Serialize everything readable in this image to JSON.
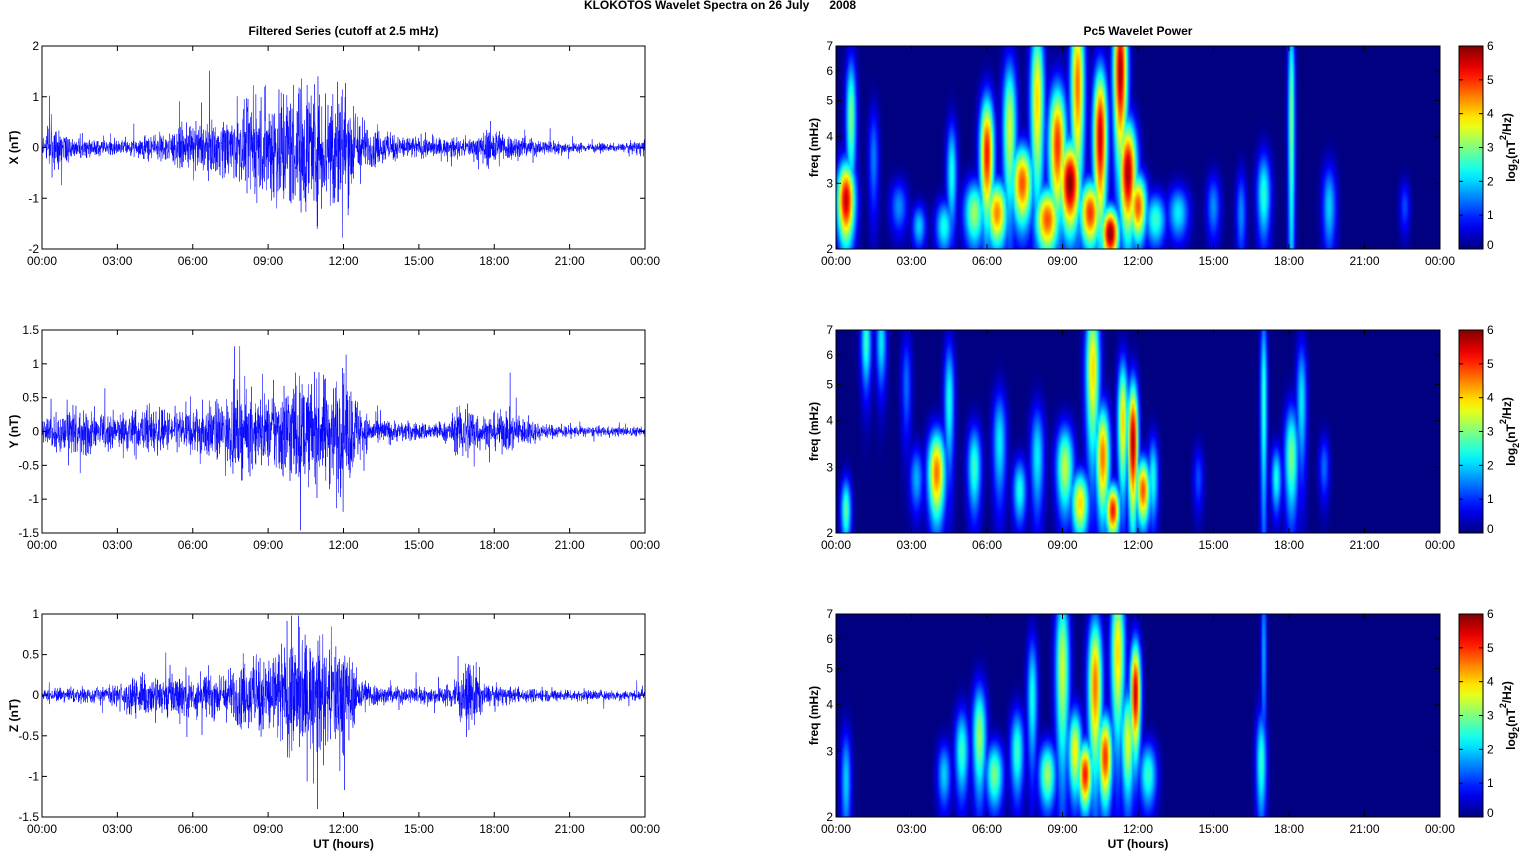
{
  "figure": {
    "title": "KLOKOTOS Wavelet Spectra on 26 July      2008"
  },
  "chart_data": [
    {
      "type": "line",
      "panel": "X",
      "title": "Filtered Series (cutoff at 2.5 mHz)",
      "xlabel": "",
      "ylabel": "X (nT)",
      "xlim": [
        0,
        24
      ],
      "ylim": [
        -2,
        2
      ],
      "xticks": [
        "00:00",
        "03:00",
        "06:00",
        "09:00",
        "12:00",
        "15:00",
        "18:00",
        "21:00",
        "00:00"
      ],
      "yticks": [
        -2,
        -1,
        0,
        1,
        2
      ],
      "color": "#0000ff",
      "envelope": [
        {
          "t": 0,
          "a": 0.15
        },
        {
          "t": 0.5,
          "a": 0.55
        },
        {
          "t": 1,
          "a": 0.3
        },
        {
          "t": 2,
          "a": 0.18
        },
        {
          "t": 3,
          "a": 0.18
        },
        {
          "t": 4,
          "a": 0.22
        },
        {
          "t": 5,
          "a": 0.35
        },
        {
          "t": 6,
          "a": 0.5
        },
        {
          "t": 7,
          "a": 0.6
        },
        {
          "t": 8,
          "a": 0.8
        },
        {
          "t": 9,
          "a": 1.2
        },
        {
          "t": 9.5,
          "a": 1.5
        },
        {
          "t": 10,
          "a": 1.4
        },
        {
          "t": 10.6,
          "a": 1.6
        },
        {
          "t": 11.2,
          "a": 1.4
        },
        {
          "t": 11.8,
          "a": 1.7
        },
        {
          "t": 12.3,
          "a": 1.1
        },
        {
          "t": 13,
          "a": 0.45
        },
        {
          "t": 14,
          "a": 0.3
        },
        {
          "t": 15,
          "a": 0.25
        },
        {
          "t": 16,
          "a": 0.2
        },
        {
          "t": 17,
          "a": 0.2
        },
        {
          "t": 18,
          "a": 0.5
        },
        {
          "t": 18.5,
          "a": 0.3
        },
        {
          "t": 19.5,
          "a": 0.2
        },
        {
          "t": 21,
          "a": 0.12
        },
        {
          "t": 23,
          "a": 0.08
        },
        {
          "t": 24,
          "a": 0.18
        }
      ]
    },
    {
      "type": "line",
      "panel": "Y",
      "title": "",
      "xlabel": "",
      "ylabel": "Y (nT)",
      "xlim": [
        0,
        24
      ],
      "ylim": [
        -1.5,
        1.5
      ],
      "xticks": [
        "00:00",
        "03:00",
        "06:00",
        "09:00",
        "12:00",
        "15:00",
        "18:00",
        "21:00",
        "00:00"
      ],
      "yticks": [
        -1.5,
        -1,
        -0.5,
        0,
        0.5,
        1,
        1.5
      ],
      "color": "#0000ff",
      "envelope": [
        {
          "t": 0,
          "a": 0.2
        },
        {
          "t": 1,
          "a": 0.4
        },
        {
          "t": 2,
          "a": 0.35
        },
        {
          "t": 3,
          "a": 0.3
        },
        {
          "t": 4,
          "a": 0.4
        },
        {
          "t": 5,
          "a": 0.35
        },
        {
          "t": 6,
          "a": 0.4
        },
        {
          "t": 7,
          "a": 0.5
        },
        {
          "t": 8,
          "a": 0.7
        },
        {
          "t": 9,
          "a": 0.6
        },
        {
          "t": 10,
          "a": 1.0
        },
        {
          "t": 10.5,
          "a": 0.8
        },
        {
          "t": 11,
          "a": 0.85
        },
        {
          "t": 12,
          "a": 1.0
        },
        {
          "t": 13,
          "a": 0.25
        },
        {
          "t": 14,
          "a": 0.18
        },
        {
          "t": 15,
          "a": 0.15
        },
        {
          "t": 16,
          "a": 0.15
        },
        {
          "t": 17,
          "a": 0.55
        },
        {
          "t": 17.5,
          "a": 0.25
        },
        {
          "t": 18.5,
          "a": 0.35
        },
        {
          "t": 20,
          "a": 0.12
        },
        {
          "t": 22,
          "a": 0.08
        },
        {
          "t": 24,
          "a": 0.08
        }
      ]
    },
    {
      "type": "line",
      "panel": "Z",
      "title": "",
      "xlabel": "UT (hours)",
      "ylabel": "Z (nT)",
      "xlim": [
        0,
        24
      ],
      "ylim": [
        -1.5,
        1
      ],
      "xticks": [
        "00:00",
        "03:00",
        "06:00",
        "09:00",
        "12:00",
        "15:00",
        "18:00",
        "21:00",
        "00:00"
      ],
      "yticks": [
        -1.5,
        -1,
        -0.5,
        0,
        0.5,
        1
      ],
      "color": "#0000ff",
      "envelope": [
        {
          "t": 0,
          "a": 0.08
        },
        {
          "t": 1,
          "a": 0.12
        },
        {
          "t": 2,
          "a": 0.1
        },
        {
          "t": 3,
          "a": 0.15
        },
        {
          "t": 4,
          "a": 0.3
        },
        {
          "t": 5,
          "a": 0.35
        },
        {
          "t": 6,
          "a": 0.3
        },
        {
          "t": 7,
          "a": 0.3
        },
        {
          "t": 8,
          "a": 0.45
        },
        {
          "t": 9,
          "a": 0.6
        },
        {
          "t": 10,
          "a": 0.9
        },
        {
          "t": 10.5,
          "a": 0.8
        },
        {
          "t": 11.5,
          "a": 0.7
        },
        {
          "t": 12,
          "a": 0.9
        },
        {
          "t": 12.5,
          "a": 0.3
        },
        {
          "t": 13.5,
          "a": 0.12
        },
        {
          "t": 15,
          "a": 0.12
        },
        {
          "t": 16,
          "a": 0.12
        },
        {
          "t": 17.2,
          "a": 0.5
        },
        {
          "t": 17.6,
          "a": 0.15
        },
        {
          "t": 19,
          "a": 0.1
        },
        {
          "t": 21,
          "a": 0.08
        },
        {
          "t": 24,
          "a": 0.07
        }
      ]
    },
    {
      "type": "heatmap",
      "panel": "X",
      "title": "Pc5 Wavelet Power",
      "xlabel": "",
      "ylabel": "freq (mHz)",
      "xlim": [
        0,
        24
      ],
      "ylim": [
        2,
        7
      ],
      "yscale": "log",
      "xticks": [
        "00:00",
        "03:00",
        "06:00",
        "09:00",
        "12:00",
        "15:00",
        "18:00",
        "21:00",
        "00:00"
      ],
      "yticks": [
        2,
        3,
        4,
        5,
        6,
        7
      ],
      "colorbar": {
        "label_base": "log",
        "label_sub": "2",
        "label_rest": "(nT",
        "label_sup": "2",
        "label_end": "/Hz)",
        "range": [
          0,
          6
        ],
        "ticks": [
          0,
          1,
          2,
          3,
          4,
          5,
          6
        ],
        "colormap": "jet"
      },
      "blobs": [
        {
          "t": 0.4,
          "f": 2.7,
          "p": 5.6,
          "wt": 0.25,
          "wf": 0.18
        },
        {
          "t": 0.6,
          "f": 4.5,
          "p": 3.0,
          "wt": 0.15,
          "wf": 0.3
        },
        {
          "t": 1.5,
          "f": 3.5,
          "p": 1.5,
          "wt": 0.15,
          "wf": 0.25
        },
        {
          "t": 2.5,
          "f": 2.6,
          "p": 1.6,
          "wt": 0.25,
          "wf": 0.12
        },
        {
          "t": 3.3,
          "f": 2.3,
          "p": 2.0,
          "wt": 0.2,
          "wf": 0.1
        },
        {
          "t": 4.3,
          "f": 2.3,
          "p": 2.4,
          "wt": 0.25,
          "wf": 0.12
        },
        {
          "t": 4.6,
          "f": 3.2,
          "p": 2.4,
          "wt": 0.15,
          "wf": 0.25
        },
        {
          "t": 5.5,
          "f": 2.5,
          "p": 3.2,
          "wt": 0.3,
          "wf": 0.15
        },
        {
          "t": 6.0,
          "f": 3.6,
          "p": 5.2,
          "wt": 0.2,
          "wf": 0.28
        },
        {
          "t": 6.4,
          "f": 2.5,
          "p": 4.5,
          "wt": 0.3,
          "wf": 0.15
        },
        {
          "t": 6.9,
          "f": 4.2,
          "p": 3.5,
          "wt": 0.2,
          "wf": 0.35
        },
        {
          "t": 7.4,
          "f": 3.0,
          "p": 4.8,
          "wt": 0.3,
          "wf": 0.18
        },
        {
          "t": 8.0,
          "f": 5.0,
          "p": 4.0,
          "wt": 0.2,
          "wf": 0.4
        },
        {
          "t": 8.4,
          "f": 2.4,
          "p": 4.8,
          "wt": 0.35,
          "wf": 0.15
        },
        {
          "t": 8.8,
          "f": 3.8,
          "p": 5.0,
          "wt": 0.25,
          "wf": 0.3
        },
        {
          "t": 9.3,
          "f": 3.0,
          "p": 6.0,
          "wt": 0.3,
          "wf": 0.2
        },
        {
          "t": 9.6,
          "f": 5.5,
          "p": 4.6,
          "wt": 0.2,
          "wf": 0.4
        },
        {
          "t": 10.1,
          "f": 2.5,
          "p": 5.0,
          "wt": 0.3,
          "wf": 0.15
        },
        {
          "t": 10.5,
          "f": 4.0,
          "p": 5.6,
          "wt": 0.2,
          "wf": 0.35
        },
        {
          "t": 10.9,
          "f": 2.2,
          "p": 6.0,
          "wt": 0.25,
          "wf": 0.12
        },
        {
          "t": 11.3,
          "f": 6.0,
          "p": 5.8,
          "wt": 0.2,
          "wf": 0.35
        },
        {
          "t": 11.6,
          "f": 3.2,
          "p": 5.8,
          "wt": 0.25,
          "wf": 0.25
        },
        {
          "t": 12.0,
          "f": 2.6,
          "p": 4.8,
          "wt": 0.25,
          "wf": 0.15
        },
        {
          "t": 12.7,
          "f": 2.4,
          "p": 2.6,
          "wt": 0.3,
          "wf": 0.12
        },
        {
          "t": 13.6,
          "f": 2.5,
          "p": 2.2,
          "wt": 0.3,
          "wf": 0.12
        },
        {
          "t": 15.0,
          "f": 2.6,
          "p": 1.6,
          "wt": 0.2,
          "wf": 0.15
        },
        {
          "t": 16.1,
          "f": 2.5,
          "p": 1.6,
          "wt": 0.15,
          "wf": 0.2
        },
        {
          "t": 17.0,
          "f": 2.8,
          "p": 2.5,
          "wt": 0.2,
          "wf": 0.2
        },
        {
          "t": 18.1,
          "f": 4.5,
          "p": 3.0,
          "wt": 0.1,
          "wf": 0.6
        },
        {
          "t": 19.6,
          "f": 2.6,
          "p": 2.0,
          "wt": 0.2,
          "wf": 0.2
        },
        {
          "t": 22.6,
          "f": 2.6,
          "p": 1.2,
          "wt": 0.15,
          "wf": 0.12
        }
      ]
    },
    {
      "type": "heatmap",
      "panel": "Y",
      "title": "",
      "xlabel": "",
      "ylabel": "freq (mHz)",
      "xlim": [
        0,
        24
      ],
      "ylim": [
        2,
        7
      ],
      "yscale": "log",
      "xticks": [
        "00:00",
        "03:00",
        "06:00",
        "09:00",
        "12:00",
        "15:00",
        "18:00",
        "21:00",
        "00:00"
      ],
      "yticks": [
        2,
        3,
        4,
        5,
        6,
        7
      ],
      "colorbar": {
        "label_base": "log",
        "label_sub": "2",
        "label_rest": "(nT",
        "label_sup": "2",
        "label_end": "/Hz)",
        "range": [
          0,
          6
        ],
        "ticks": [
          0,
          1,
          2,
          3,
          4,
          5,
          6
        ],
        "colormap": "jet"
      },
      "blobs": [
        {
          "t": 0.4,
          "f": 2.3,
          "p": 2.8,
          "wt": 0.15,
          "wf": 0.15
        },
        {
          "t": 1.2,
          "f": 6.5,
          "p": 2.6,
          "wt": 0.15,
          "wf": 0.2
        },
        {
          "t": 1.8,
          "f": 6.5,
          "p": 2.2,
          "wt": 0.15,
          "wf": 0.2
        },
        {
          "t": 2.8,
          "f": 5.0,
          "p": 1.4,
          "wt": 0.15,
          "wf": 0.25
        },
        {
          "t": 3.2,
          "f": 2.8,
          "p": 1.8,
          "wt": 0.2,
          "wf": 0.15
        },
        {
          "t": 4.0,
          "f": 2.9,
          "p": 4.6,
          "wt": 0.25,
          "wf": 0.2
        },
        {
          "t": 4.5,
          "f": 4.5,
          "p": 2.4,
          "wt": 0.15,
          "wf": 0.3
        },
        {
          "t": 5.5,
          "f": 3.0,
          "p": 2.6,
          "wt": 0.2,
          "wf": 0.2
        },
        {
          "t": 6.5,
          "f": 3.5,
          "p": 2.2,
          "wt": 0.2,
          "wf": 0.25
        },
        {
          "t": 7.3,
          "f": 2.6,
          "p": 2.4,
          "wt": 0.2,
          "wf": 0.15
        },
        {
          "t": 8.0,
          "f": 3.2,
          "p": 2.2,
          "wt": 0.2,
          "wf": 0.25
        },
        {
          "t": 9.1,
          "f": 3.0,
          "p": 3.4,
          "wt": 0.25,
          "wf": 0.2
        },
        {
          "t": 9.7,
          "f": 2.4,
          "p": 4.0,
          "wt": 0.25,
          "wf": 0.15
        },
        {
          "t": 10.2,
          "f": 5.5,
          "p": 4.0,
          "wt": 0.2,
          "wf": 0.35
        },
        {
          "t": 10.6,
          "f": 3.2,
          "p": 4.6,
          "wt": 0.2,
          "wf": 0.25
        },
        {
          "t": 11.0,
          "f": 2.3,
          "p": 5.2,
          "wt": 0.2,
          "wf": 0.12
        },
        {
          "t": 11.4,
          "f": 4.0,
          "p": 4.0,
          "wt": 0.15,
          "wf": 0.3
        },
        {
          "t": 11.8,
          "f": 3.5,
          "p": 5.8,
          "wt": 0.15,
          "wf": 0.3
        },
        {
          "t": 12.2,
          "f": 2.6,
          "p": 4.8,
          "wt": 0.2,
          "wf": 0.15
        },
        {
          "t": 12.6,
          "f": 2.8,
          "p": 2.4,
          "wt": 0.15,
          "wf": 0.2
        },
        {
          "t": 14.4,
          "f": 2.8,
          "p": 1.2,
          "wt": 0.15,
          "wf": 0.15
        },
        {
          "t": 17.0,
          "f": 4.5,
          "p": 2.6,
          "wt": 0.1,
          "wf": 0.5
        },
        {
          "t": 17.5,
          "f": 2.8,
          "p": 2.4,
          "wt": 0.15,
          "wf": 0.15
        },
        {
          "t": 18.1,
          "f": 3.2,
          "p": 3.0,
          "wt": 0.2,
          "wf": 0.25
        },
        {
          "t": 18.5,
          "f": 4.5,
          "p": 2.2,
          "wt": 0.15,
          "wf": 0.3
        },
        {
          "t": 19.4,
          "f": 3.0,
          "p": 1.4,
          "wt": 0.15,
          "wf": 0.15
        }
      ]
    },
    {
      "type": "heatmap",
      "panel": "Z",
      "title": "",
      "xlabel": "UT (hours)",
      "ylabel": "freq (mHz)",
      "xlim": [
        0,
        24
      ],
      "ylim": [
        2,
        7
      ],
      "yscale": "log",
      "xticks": [
        "00:00",
        "03:00",
        "06:00",
        "09:00",
        "12:00",
        "15:00",
        "18:00",
        "21:00",
        "00:00"
      ],
      "yticks": [
        2,
        3,
        4,
        5,
        6,
        7
      ],
      "colorbar": {
        "label_base": "log",
        "label_sub": "2",
        "label_rest": "(nT",
        "label_sup": "2",
        "label_end": "/Hz)",
        "range": [
          0,
          6
        ],
        "ticks": [
          0,
          1,
          2,
          3,
          4,
          5,
          6
        ],
        "colormap": "jet"
      },
      "blobs": [
        {
          "t": 0.4,
          "f": 2.5,
          "p": 2.0,
          "wt": 0.15,
          "wf": 0.25
        },
        {
          "t": 4.3,
          "f": 2.6,
          "p": 2.0,
          "wt": 0.2,
          "wf": 0.15
        },
        {
          "t": 5.0,
          "f": 3.0,
          "p": 2.6,
          "wt": 0.2,
          "wf": 0.2
        },
        {
          "t": 5.7,
          "f": 3.3,
          "p": 3.2,
          "wt": 0.2,
          "wf": 0.25
        },
        {
          "t": 6.3,
          "f": 2.6,
          "p": 3.0,
          "wt": 0.25,
          "wf": 0.15
        },
        {
          "t": 7.2,
          "f": 3.0,
          "p": 2.6,
          "wt": 0.2,
          "wf": 0.2
        },
        {
          "t": 7.8,
          "f": 4.2,
          "p": 2.4,
          "wt": 0.15,
          "wf": 0.3
        },
        {
          "t": 8.4,
          "f": 2.6,
          "p": 3.2,
          "wt": 0.25,
          "wf": 0.15
        },
        {
          "t": 9.0,
          "f": 5.0,
          "p": 3.5,
          "wt": 0.2,
          "wf": 0.4
        },
        {
          "t": 9.5,
          "f": 3.0,
          "p": 3.8,
          "wt": 0.2,
          "wf": 0.2
        },
        {
          "t": 9.9,
          "f": 2.6,
          "p": 5.2,
          "wt": 0.2,
          "wf": 0.15
        },
        {
          "t": 10.3,
          "f": 4.5,
          "p": 4.6,
          "wt": 0.2,
          "wf": 0.35
        },
        {
          "t": 10.7,
          "f": 2.9,
          "p": 5.0,
          "wt": 0.2,
          "wf": 0.2
        },
        {
          "t": 11.2,
          "f": 5.5,
          "p": 4.0,
          "wt": 0.2,
          "wf": 0.35
        },
        {
          "t": 11.6,
          "f": 3.2,
          "p": 3.6,
          "wt": 0.2,
          "wf": 0.25
        },
        {
          "t": 11.9,
          "f": 4.3,
          "p": 5.6,
          "wt": 0.15,
          "wf": 0.25
        },
        {
          "t": 12.4,
          "f": 2.6,
          "p": 2.6,
          "wt": 0.25,
          "wf": 0.15
        },
        {
          "t": 16.9,
          "f": 2.8,
          "p": 2.6,
          "wt": 0.15,
          "wf": 0.25
        },
        {
          "t": 17.0,
          "f": 5.5,
          "p": 1.8,
          "wt": 0.08,
          "wf": 0.4
        }
      ]
    }
  ]
}
